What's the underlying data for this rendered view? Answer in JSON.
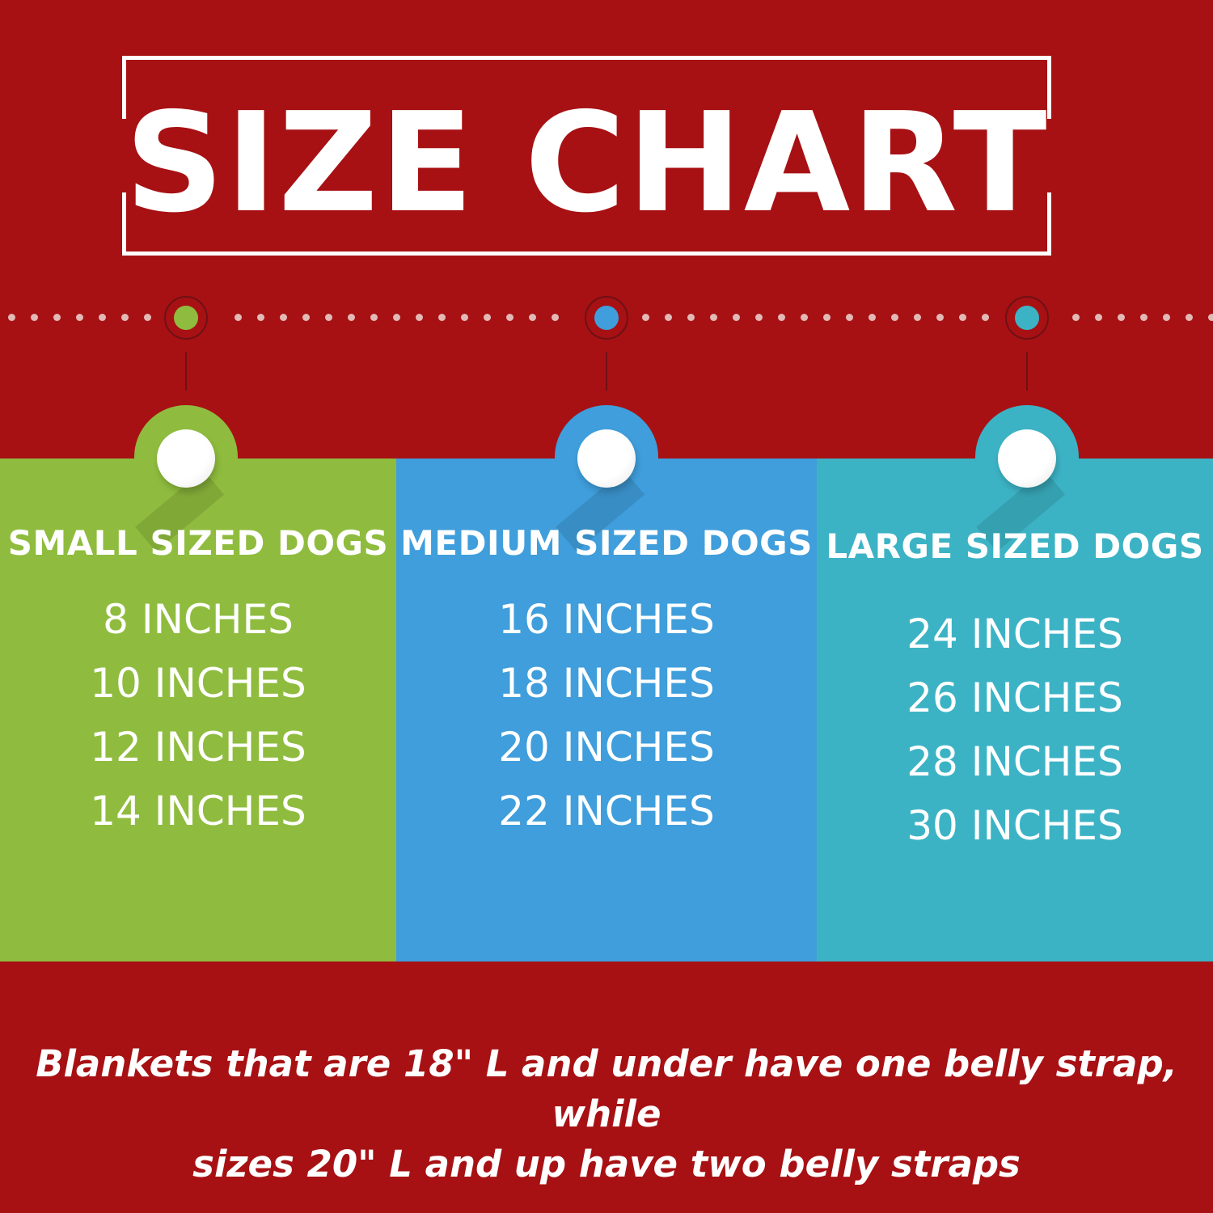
{
  "title": "SIZE CHART",
  "colors": {
    "background": "#a71114",
    "small": "#8fbc3e",
    "medium": "#3f9edb",
    "large": "#3cb3c5",
    "white": "#ffffff"
  },
  "categories": [
    {
      "title": "SMALL SIZED DOGS",
      "sizes": [
        "8 INCHES",
        "10 INCHES",
        "12 INCHES",
        "14 INCHES"
      ]
    },
    {
      "title": "MEDIUM SIZED DOGS",
      "sizes": [
        "16 INCHES",
        "18 INCHES",
        "20 INCHES",
        "22 INCHES"
      ]
    },
    {
      "title": "LARGE SIZED DOGS",
      "sizes": [
        "24 INCHES",
        "26 INCHES",
        "28 INCHES",
        "30 INCHES"
      ]
    }
  ],
  "footnote": {
    "line1": "Blankets that are 18\" L and under have one belly strap, while",
    "line2": "sizes 20\" L and up have two belly straps"
  }
}
